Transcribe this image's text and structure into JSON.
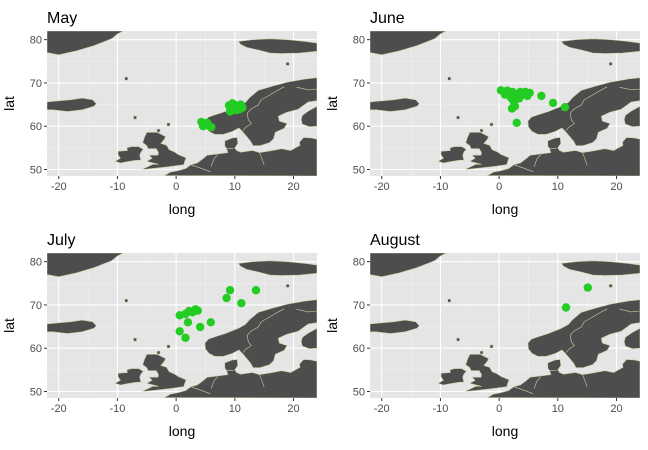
{
  "colors": {
    "panel_bg": "#e5e5e5",
    "grid_major": "#ffffff",
    "grid_minor": "#f0f0f0",
    "land": "#4d4d4d",
    "coast": "#c8d0a0",
    "point": "#22cc22",
    "text": "#000000",
    "tick_text": "#4d4d4d"
  },
  "chart_data": [
    {
      "type": "scatter",
      "title": "May",
      "xlabel": "long",
      "ylabel": "lat",
      "xlim": [
        -22,
        24
      ],
      "ylim": [
        48.5,
        82
      ],
      "xticks": [
        -20,
        -10,
        0,
        10,
        20
      ],
      "yticks": [
        50,
        60,
        70,
        80
      ],
      "xtick_labels": [
        "-20",
        "-10",
        "0",
        "10",
        "20"
      ],
      "ytick_labels": [
        "50",
        "60",
        "70",
        "80"
      ],
      "grid": true,
      "points": [
        {
          "x": 4.3,
          "y": 61.0
        },
        {
          "x": 4.8,
          "y": 60.4
        },
        {
          "x": 5.3,
          "y": 60.8
        },
        {
          "x": 5.6,
          "y": 60.1
        },
        {
          "x": 6.0,
          "y": 59.8
        },
        {
          "x": 4.6,
          "y": 60.0
        },
        {
          "x": 9.0,
          "y": 64.8
        },
        {
          "x": 9.5,
          "y": 64.0
        },
        {
          "x": 9.9,
          "y": 65.0
        },
        {
          "x": 10.2,
          "y": 63.7
        },
        {
          "x": 10.6,
          "y": 64.5
        },
        {
          "x": 11.0,
          "y": 65.0
        },
        {
          "x": 9.2,
          "y": 63.4
        },
        {
          "x": 10.0,
          "y": 64.0
        },
        {
          "x": 11.3,
          "y": 64.3
        },
        {
          "x": 10.8,
          "y": 63.9
        },
        {
          "x": 9.6,
          "y": 65.3
        }
      ]
    },
    {
      "type": "scatter",
      "title": "June",
      "xlabel": "long",
      "ylabel": "lat",
      "xlim": [
        -22,
        24
      ],
      "ylim": [
        48.5,
        82
      ],
      "xticks": [
        -20,
        -10,
        0,
        10,
        20
      ],
      "yticks": [
        50,
        60,
        70,
        80
      ],
      "xtick_labels": [
        "-20",
        "-10",
        "0",
        "10",
        "20"
      ],
      "ytick_labels": [
        "50",
        "60",
        "70",
        "80"
      ],
      "grid": true,
      "points": [
        {
          "x": 0.3,
          "y": 68.3
        },
        {
          "x": 0.9,
          "y": 68.0
        },
        {
          "x": 1.4,
          "y": 68.2
        },
        {
          "x": 1.9,
          "y": 67.6
        },
        {
          "x": 2.3,
          "y": 67.9
        },
        {
          "x": 1.0,
          "y": 67.3
        },
        {
          "x": 2.0,
          "y": 66.6
        },
        {
          "x": 2.5,
          "y": 65.7
        },
        {
          "x": 2.7,
          "y": 64.6
        },
        {
          "x": 2.2,
          "y": 64.1
        },
        {
          "x": 3.0,
          "y": 66.9
        },
        {
          "x": 3.6,
          "y": 67.9
        },
        {
          "x": 4.1,
          "y": 67.3
        },
        {
          "x": 4.5,
          "y": 67.9
        },
        {
          "x": 3.4,
          "y": 66.4
        },
        {
          "x": 4.8,
          "y": 67.0
        },
        {
          "x": 5.2,
          "y": 67.7
        },
        {
          "x": 7.2,
          "y": 67.0
        },
        {
          "x": 9.2,
          "y": 65.4
        },
        {
          "x": 11.2,
          "y": 64.4
        },
        {
          "x": 3.0,
          "y": 60.8
        }
      ]
    },
    {
      "type": "scatter",
      "title": "July",
      "xlabel": "long",
      "ylabel": "lat",
      "xlim": [
        -22,
        24
      ],
      "ylim": [
        48.5,
        82
      ],
      "xticks": [
        -20,
        -10,
        0,
        10,
        20
      ],
      "yticks": [
        50,
        60,
        70,
        80
      ],
      "xtick_labels": [
        "-20",
        "-10",
        "0",
        "10",
        "20"
      ],
      "ytick_labels": [
        "50",
        "60",
        "70",
        "80"
      ],
      "grid": true,
      "points": [
        {
          "x": 0.6,
          "y": 67.6
        },
        {
          "x": 1.6,
          "y": 67.9
        },
        {
          "x": 2.2,
          "y": 68.6
        },
        {
          "x": 2.8,
          "y": 68.3
        },
        {
          "x": 3.3,
          "y": 69.0
        },
        {
          "x": 3.7,
          "y": 68.7
        },
        {
          "x": 2.0,
          "y": 66.0
        },
        {
          "x": 0.6,
          "y": 63.9
        },
        {
          "x": 1.6,
          "y": 62.4
        },
        {
          "x": 4.1,
          "y": 64.9
        },
        {
          "x": 5.9,
          "y": 66.0
        },
        {
          "x": 8.6,
          "y": 71.6
        },
        {
          "x": 9.2,
          "y": 73.4
        },
        {
          "x": 11.1,
          "y": 70.4
        },
        {
          "x": 13.6,
          "y": 73.4
        }
      ]
    },
    {
      "type": "scatter",
      "title": "August",
      "xlabel": "long",
      "ylabel": "lat",
      "xlim": [
        -22,
        24
      ],
      "ylim": [
        48.5,
        82
      ],
      "xticks": [
        -20,
        -10,
        0,
        10,
        20
      ],
      "yticks": [
        50,
        60,
        70,
        80
      ],
      "xtick_labels": [
        "-20",
        "-10",
        "0",
        "10",
        "20"
      ],
      "ytick_labels": [
        "50",
        "60",
        "70",
        "80"
      ],
      "grid": true,
      "points": [
        {
          "x": 11.4,
          "y": 69.4
        },
        {
          "x": 15.1,
          "y": 74.0
        }
      ]
    }
  ]
}
